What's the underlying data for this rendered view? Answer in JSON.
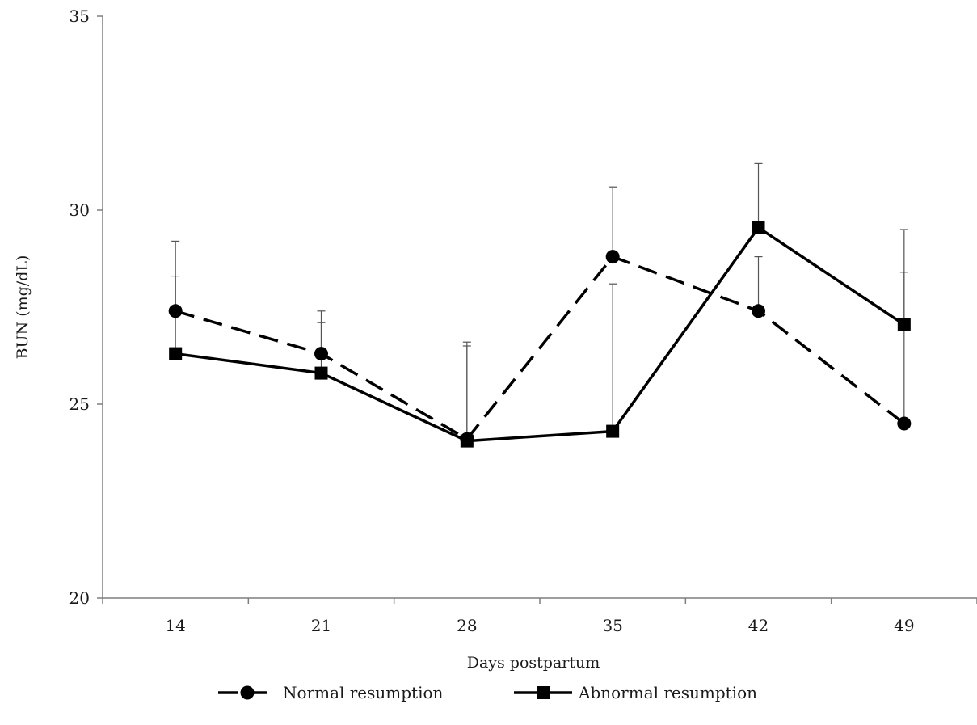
{
  "chart_data": {
    "type": "line",
    "title": "",
    "xlabel": "Days postpartum",
    "ylabel": "BUN (mg/dL)",
    "categories": [
      "14",
      "21",
      "28",
      "35",
      "42",
      "49"
    ],
    "ylim": [
      20,
      35
    ],
    "yticks": [
      "20",
      "25",
      "30",
      "35"
    ],
    "grid": false,
    "legend_position": "bottom",
    "series": [
      {
        "name": "Normal resumption",
        "marker": "circle",
        "line_style": "dashed",
        "color": "#000000",
        "values": [
          27.4,
          26.3,
          24.1,
          28.8,
          27.4,
          24.5
        ],
        "error_upper": [
          28.3,
          27.1,
          26.6,
          30.6,
          28.8,
          28.4
        ]
      },
      {
        "name": "Abnormal resumption",
        "marker": "square",
        "line_style": "solid",
        "color": "#000000",
        "values": [
          26.3,
          25.8,
          24.05,
          24.3,
          29.55,
          27.05
        ],
        "error_upper": [
          29.2,
          27.4,
          26.5,
          28.1,
          31.2,
          29.5
        ]
      }
    ]
  }
}
